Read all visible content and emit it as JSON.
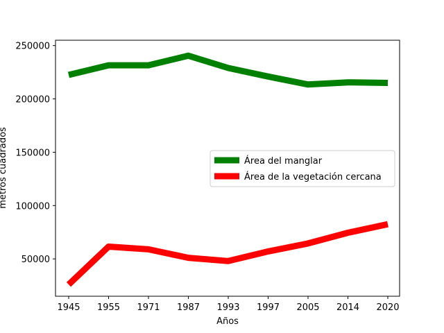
{
  "chart_data": {
    "type": "line",
    "categories": [
      "1945",
      "1955",
      "1971",
      "1987",
      "1993",
      "1997",
      "2005",
      "2014",
      "2020"
    ],
    "series": [
      {
        "name": "Área del manglar",
        "color": "#008000",
        "values": [
          222500,
          231500,
          231500,
          240500,
          229000,
          221000,
          213500,
          215500,
          215000
        ]
      },
      {
        "name": "Área de la vegetación cercana",
        "color": "#ff0000",
        "values": [
          26000,
          61500,
          59000,
          51000,
          48000,
          57000,
          64500,
          74500,
          82500
        ]
      }
    ],
    "xlabel": "Años",
    "ylabel": "metros cuadrados",
    "ylim": [
      15000,
      255000
    ],
    "yticks": [
      50000,
      100000,
      150000,
      200000,
      250000
    ],
    "ytick_labels": [
      "50000",
      "100000",
      "150000",
      "200000",
      "250000"
    ],
    "grid": false,
    "legend_position": "center-right"
  }
}
